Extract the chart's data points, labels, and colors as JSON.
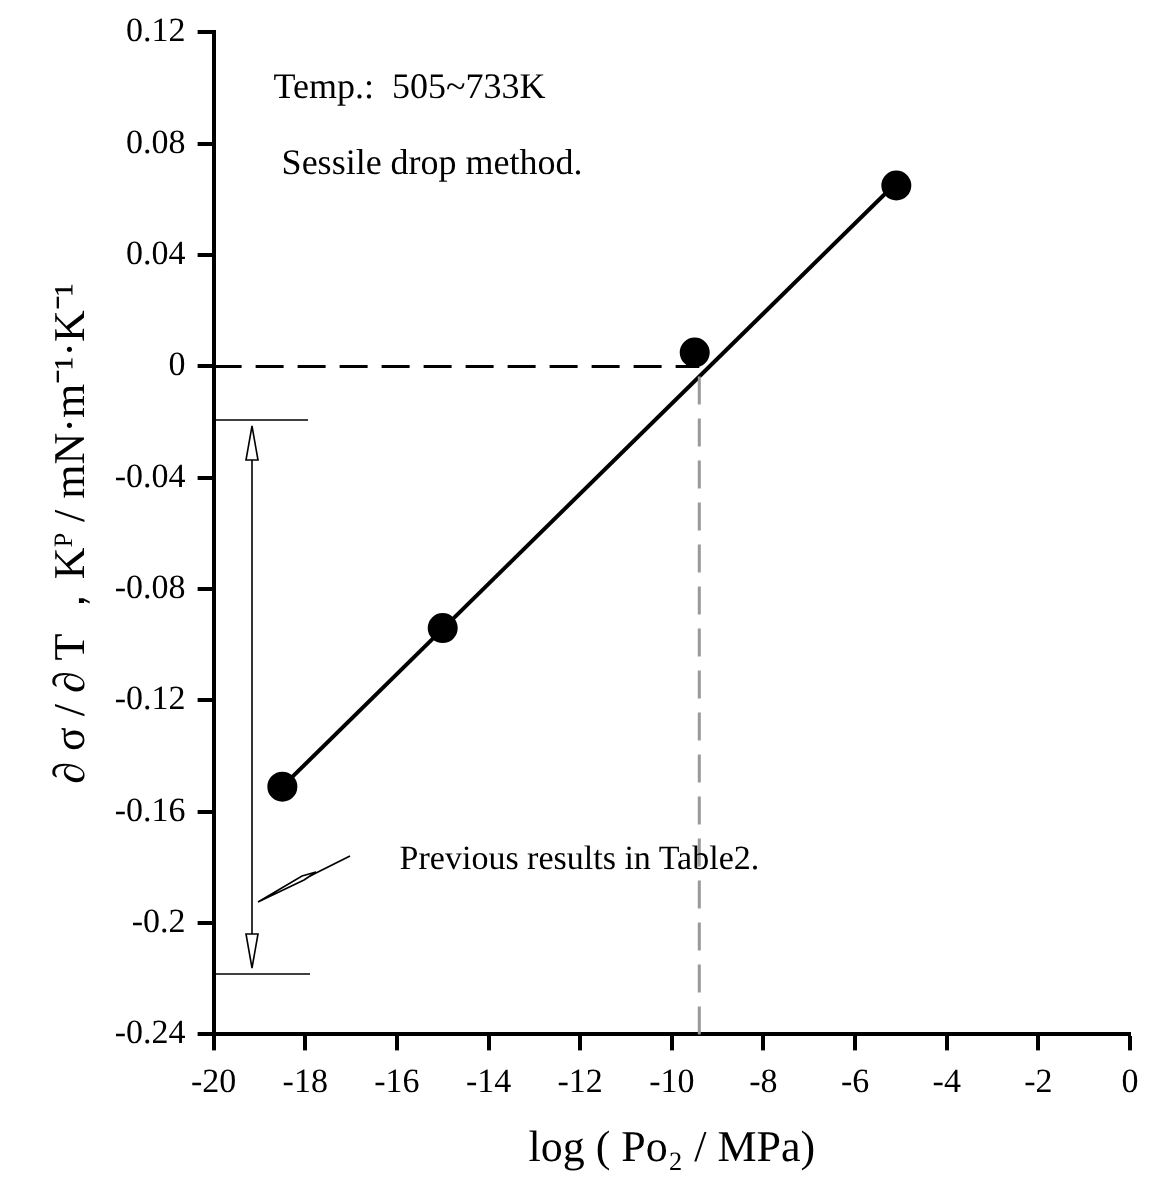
{
  "chart_data": {
    "type": "scatter",
    "xlabel": "log ( Po₂ / MPa)",
    "ylabel": "∂ σ / ∂ T ，Kᴾ / mN·m⁻¹·K⁻¹",
    "x": [
      -18.5,
      -15,
      -9.5,
      -5.1
    ],
    "series": [
      {
        "type": "scatter",
        "color": "#000000",
        "values": [
          -0.151,
          -0.094,
          0.005,
          0.065
        ],
        "marker": "circle"
      },
      {
        "type": "line",
        "color": "#000000",
        "x": [
          -18.5,
          -5.1
        ],
        "values": [
          -0.151,
          0.066
        ],
        "marker": "none",
        "line_style": "solid"
      }
    ],
    "xlim": [
      -20,
      0
    ],
    "xticks": [
      -20,
      -18,
      -16,
      -14,
      -12,
      -10,
      -8,
      -6,
      -4,
      -2,
      0
    ],
    "ylim": [
      -0.24,
      0.12
    ],
    "yticks": [
      -0.24,
      -0.2,
      -0.16,
      -0.12,
      -0.08,
      -0.04,
      0,
      0.04,
      0.08,
      0.12
    ],
    "grid": false,
    "legend": false,
    "ref_lines": [
      {
        "axis": "y",
        "value": 0,
        "color": "#000000",
        "line_style": "dashed"
      },
      {
        "axis": "x",
        "value": -9.4,
        "color": "#999999",
        "line_style": "dashed"
      }
    ],
    "annotations": [
      "Temp.:  505~733K",
      "Sessile drop method.",
      "Previous results in Table2."
    ]
  }
}
